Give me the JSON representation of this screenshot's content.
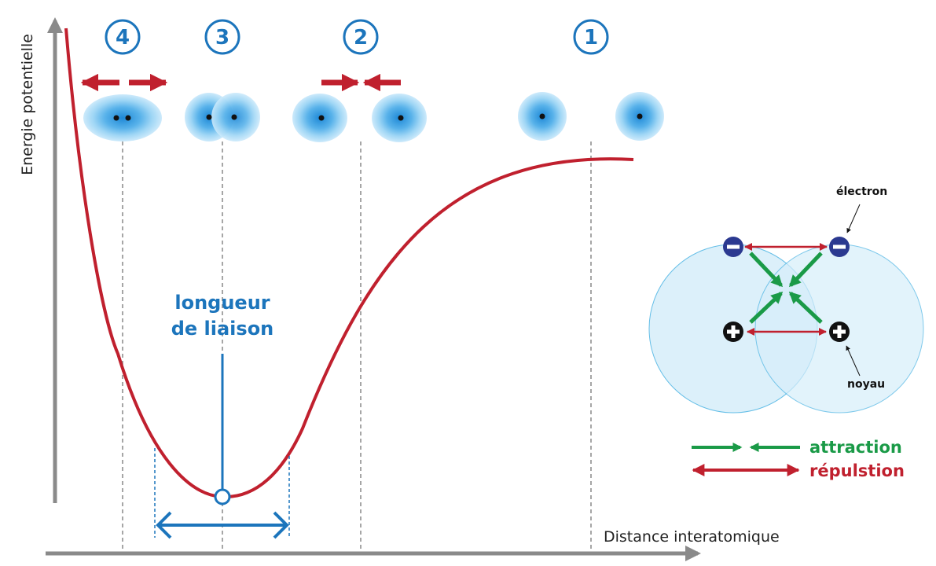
{
  "axes": {
    "y_label": "Energie potentielle",
    "x_label": "Distance interatomique"
  },
  "steps": [
    {
      "number": "4",
      "state": "repulsion"
    },
    {
      "number": "3",
      "state": "equilibrium"
    },
    {
      "number": "2",
      "state": "attraction"
    },
    {
      "number": "1",
      "state": "isolated"
    }
  ],
  "bond_length": {
    "line1": "longueur",
    "line2": "de liaison"
  },
  "detail": {
    "electron_label": "électron",
    "nucleus_label": "noyau"
  },
  "legend": {
    "attraction": "attraction",
    "repulsion": "répulstion"
  },
  "colors": {
    "curve": "#c0202e",
    "accent_blue": "#1c75bc",
    "attraction_green": "#1a9a47",
    "repulsion_red": "#c0202e",
    "electron_navy": "#2b3990"
  }
}
